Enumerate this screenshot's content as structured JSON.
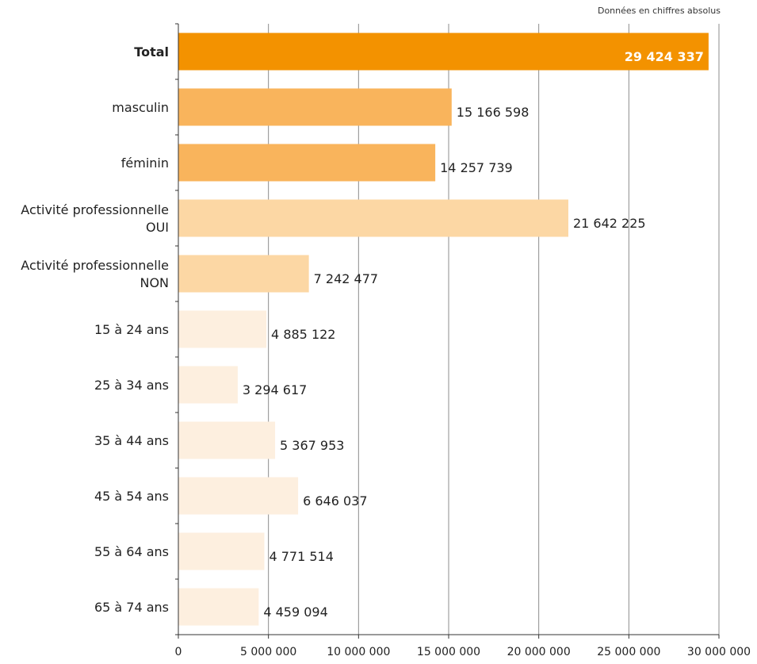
{
  "note": "Données en chiffres absolus",
  "chart_data": {
    "type": "bar",
    "orientation": "horizontal",
    "categories": [
      "Total",
      "masculin",
      "féminin",
      "Activité professionnelle OUI",
      "Activité professionnelle NON",
      "15 à 24 ans",
      "25 à 34 ans",
      "35 à 44 ans",
      "45 à 54 ans",
      "55 à 64 ans",
      "65 à 74 ans"
    ],
    "category_lines": [
      [
        "Total"
      ],
      [
        "masculin"
      ],
      [
        "féminin"
      ],
      [
        "Activité professionnelle",
        "OUI"
      ],
      [
        "Activité professionnelle",
        "NON"
      ],
      [
        "15 à 24 ans"
      ],
      [
        "25 à 34 ans"
      ],
      [
        "35 à 44 ans"
      ],
      [
        "45 à 54 ans"
      ],
      [
        "55 à 64 ans"
      ],
      [
        "65 à 74 ans"
      ]
    ],
    "values": [
      29424337,
      15166598,
      14257739,
      21642225,
      7242477,
      4885122,
      3294617,
      5367953,
      6646037,
      4771514,
      4459094
    ],
    "value_labels": [
      "29 424 337",
      "15 166 598",
      "14 257 739",
      "21 642 225",
      "7 242 477",
      "4 885 122",
      "3 294 617",
      "5 367 953",
      "6 646 037",
      "4 771 514",
      "4 459 094"
    ],
    "colors": [
      "#f39200",
      "#f9b45c",
      "#f9b45c",
      "#fcd7a4",
      "#fcd7a4",
      "#fdefdf",
      "#fdefdf",
      "#fdefdf",
      "#fdefdf",
      "#fdefdf",
      "#fdefdf"
    ],
    "xlim": [
      0,
      30000000
    ],
    "xticks": [
      0,
      5000000,
      10000000,
      15000000,
      20000000,
      25000000,
      30000000
    ],
    "xtick_labels": [
      "0",
      "5 000 000",
      "10 000 000",
      "15 000 000",
      "20 000 000",
      "25 000 000",
      "30 000 000"
    ],
    "grid": true,
    "highlight_first": true
  }
}
